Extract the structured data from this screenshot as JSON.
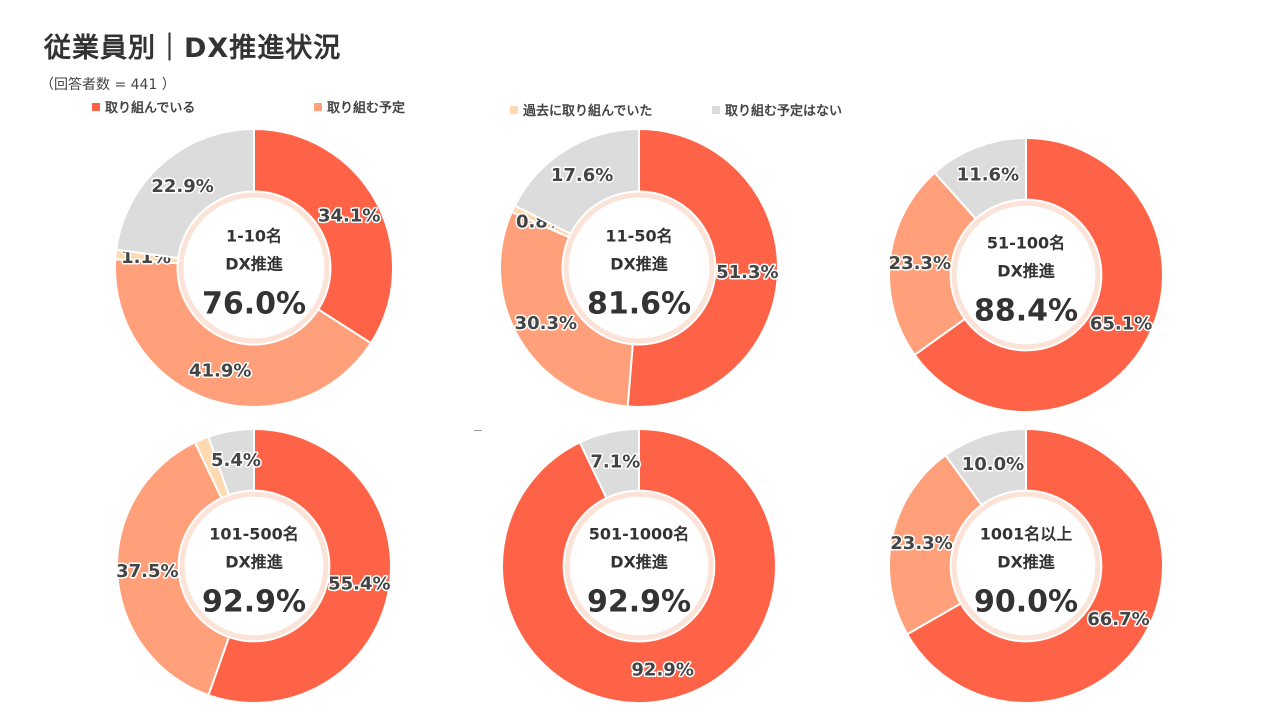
{
  "header": {
    "title": "従業員別｜DX推進状況",
    "subtitle": "（回答者数 = 441 ）"
  },
  "legend": [
    {
      "label": "取り組んでいる",
      "color": "#FF6347"
    },
    {
      "label": "取り組む予定",
      "color": "#FFA07A"
    },
    {
      "label": "過去に取り組んでいた",
      "color": "#FFD9B0"
    },
    {
      "label": "取り組む予定はない",
      "color": "#DCDCDC"
    }
  ],
  "chart_data": [
    {
      "type": "pie",
      "center_label": "1-10名",
      "center_sub": "DX推進",
      "center_value": "76.0%",
      "categories": [
        "取り組んでいる",
        "取り組む予定",
        "過去に取り組んでいた",
        "取り組む予定はない"
      ],
      "values": [
        34.1,
        41.9,
        1.1,
        22.9
      ],
      "labels": [
        "34.1%",
        "41.9%",
        "1.1%",
        "22.9%"
      ]
    },
    {
      "type": "pie",
      "center_label": "11-50名",
      "center_sub": "DX推進",
      "center_value": "81.6%",
      "categories": [
        "取り組んでいる",
        "取り組む予定",
        "過去に取り組んでいた",
        "取り組む予定はない"
      ],
      "values": [
        51.3,
        30.3,
        0.8,
        17.6
      ],
      "labels": [
        "51.3%",
        "30.3%",
        "0.8%",
        "17.6%"
      ]
    },
    {
      "type": "pie",
      "center_label": "51-100名",
      "center_sub": "DX推進",
      "center_value": "88.4%",
      "categories": [
        "取り組んでいる",
        "取り組む予定",
        "過去に取り組んでいた",
        "取り組む予定はない"
      ],
      "values": [
        65.1,
        23.3,
        0,
        11.6
      ],
      "labels": [
        "65.1%",
        "23.3%",
        "",
        "11.6%"
      ]
    },
    {
      "type": "pie",
      "center_label": "101-500名",
      "center_sub": "DX推進",
      "center_value": "92.9%",
      "categories": [
        "取り組んでいる",
        "取り組む予定",
        "過去に取り組んでいた",
        "取り組む予定はない"
      ],
      "values": [
        55.4,
        37.5,
        1.7,
        5.4
      ],
      "labels": [
        "55.4%",
        "37.5%",
        "",
        "5.4%"
      ]
    },
    {
      "type": "pie",
      "center_label": "501-1000名",
      "center_sub": "DX推進",
      "center_value": "92.9%",
      "categories": [
        "取り組んでいる",
        "取り組む予定",
        "過去に取り組んでいた",
        "取り組む予定はない"
      ],
      "values": [
        92.9,
        0,
        0,
        7.1
      ],
      "labels": [
        "92.9%",
        "",
        "",
        "7.1%"
      ]
    },
    {
      "type": "pie",
      "center_label": "1001名以上",
      "center_sub": "DX推進",
      "center_value": "90.0%",
      "categories": [
        "取り組んでいる",
        "取り組む予定",
        "過去に取り組んでいた",
        "取り組む予定はない"
      ],
      "values": [
        66.7,
        23.3,
        0,
        10.0
      ],
      "labels": [
        "66.7%",
        "23.3%",
        "",
        "10.0%"
      ]
    }
  ]
}
